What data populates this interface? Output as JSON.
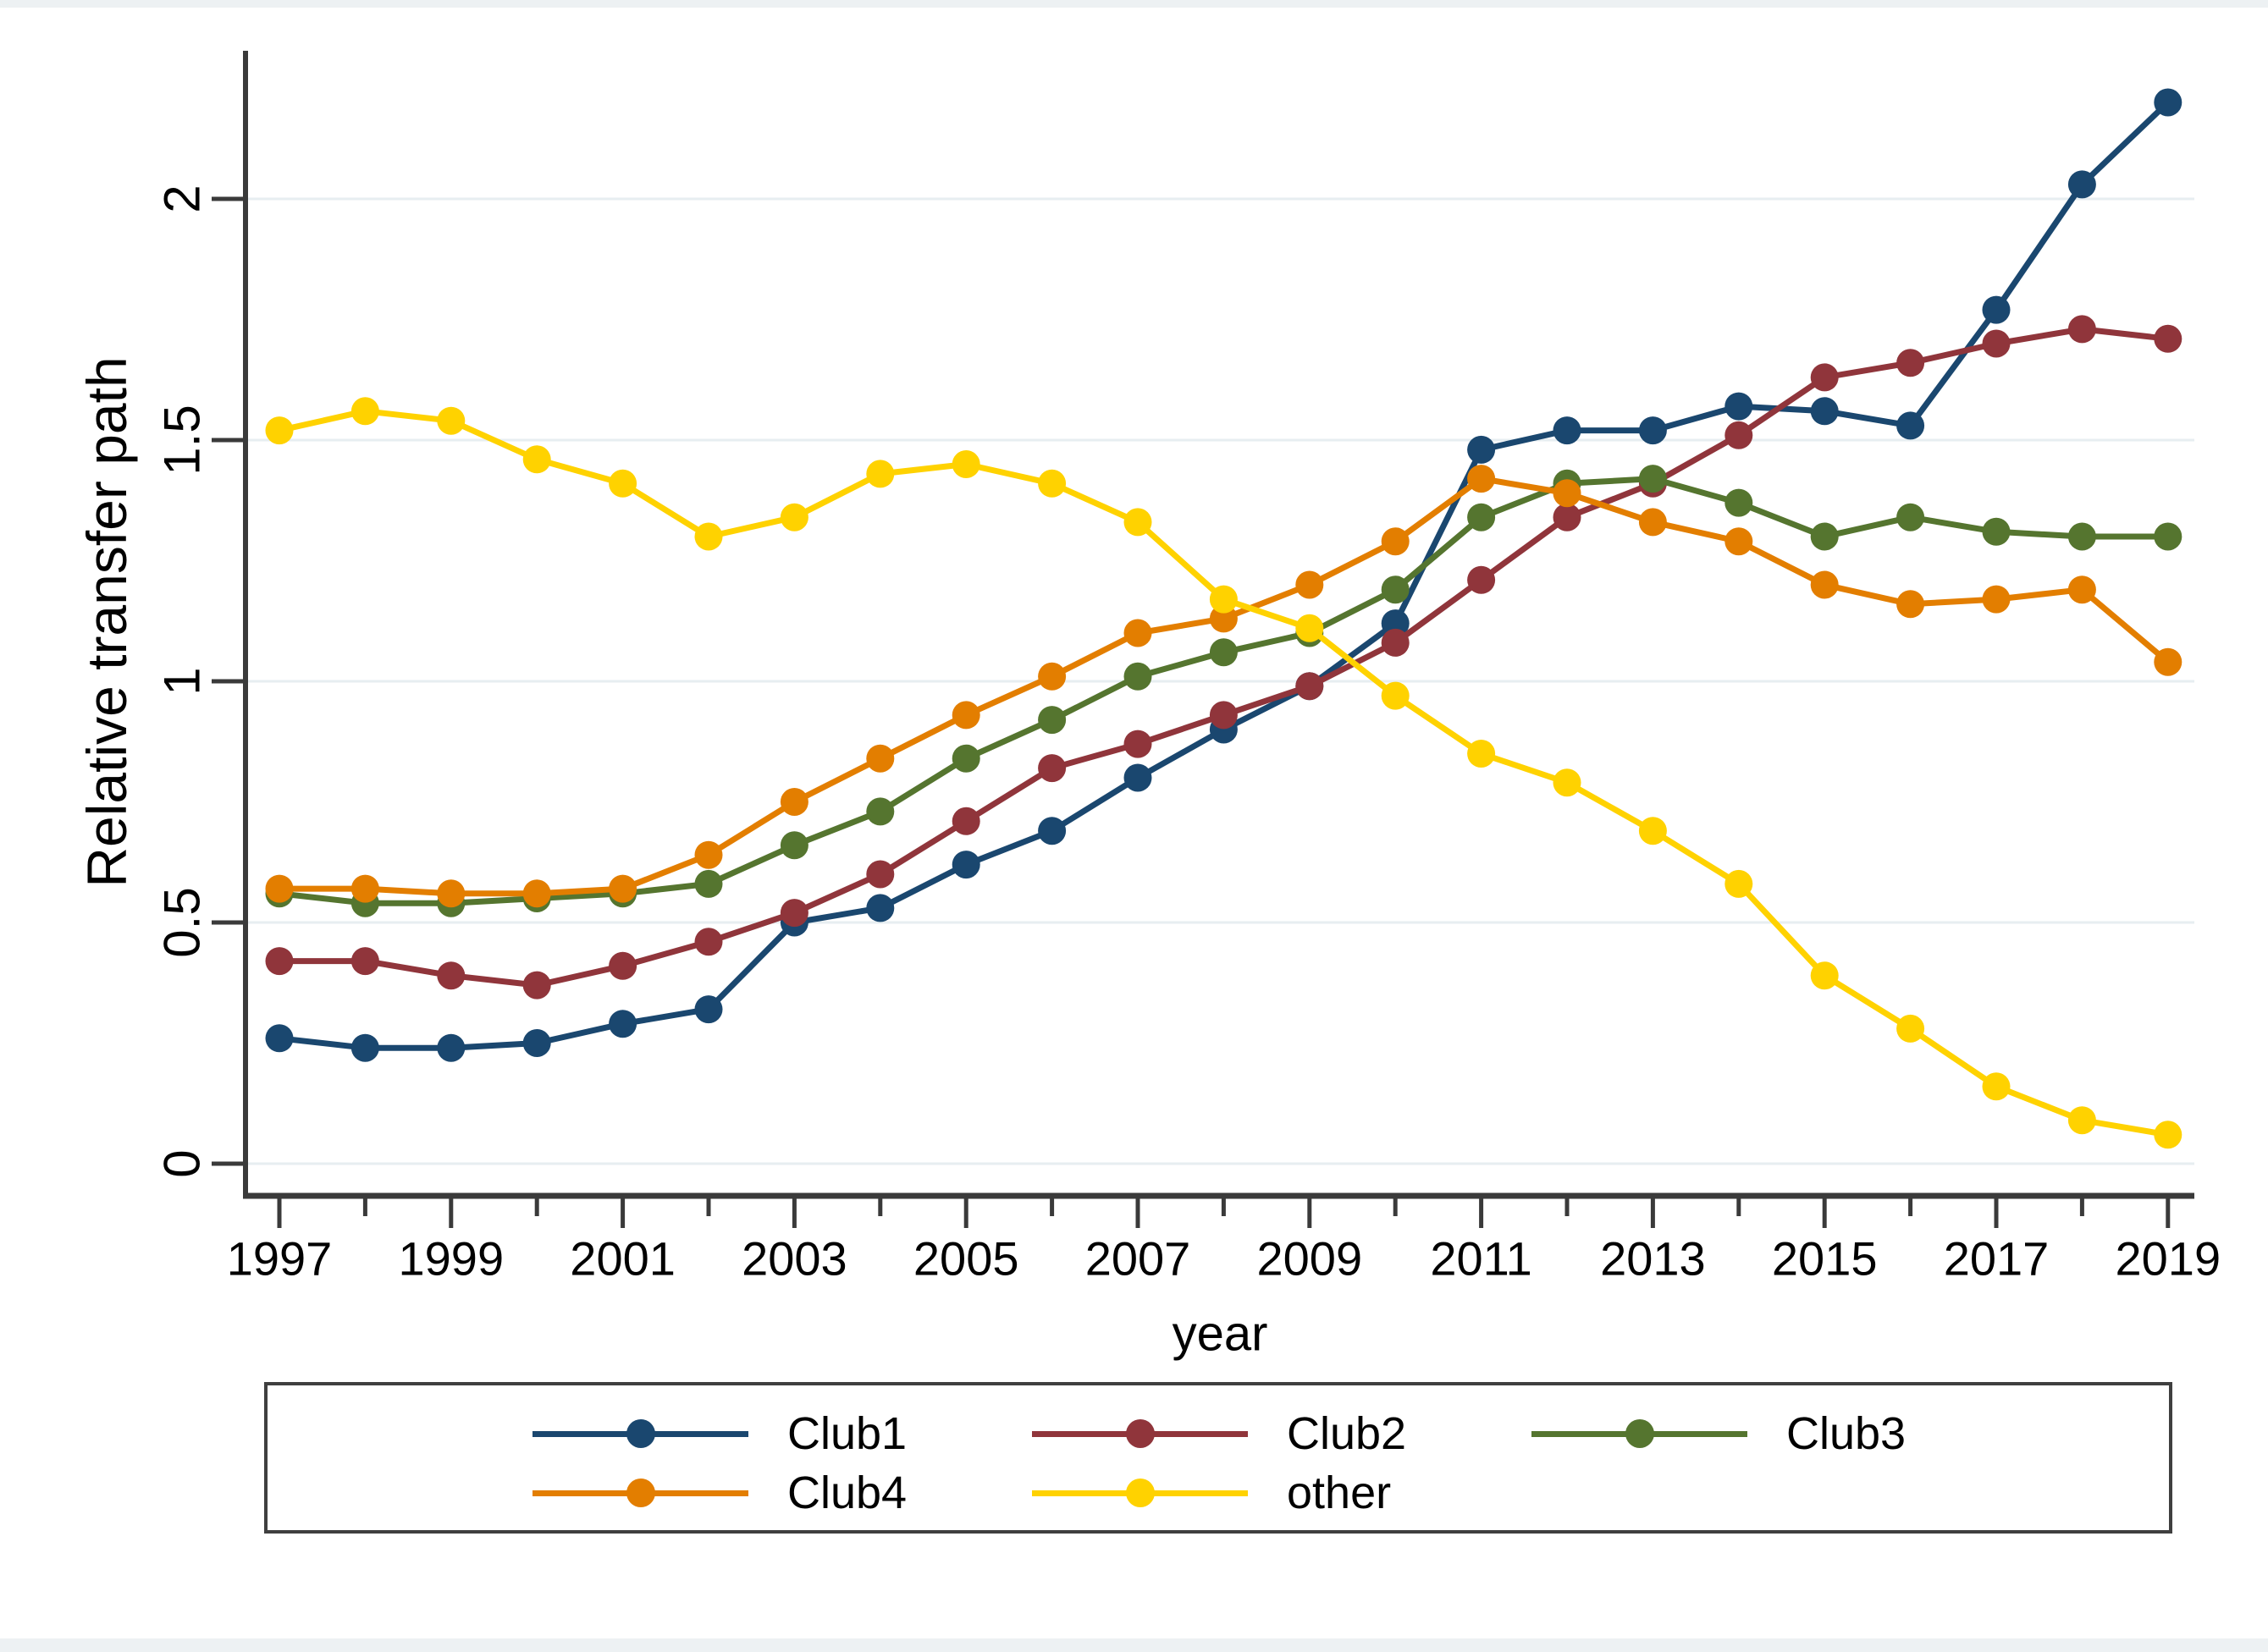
{
  "figure": {
    "background": "#ffffff",
    "text_color": "#000000",
    "axis_color": "#3a3a3a",
    "gridline_color": "#e7eef1"
  },
  "chart_data": {
    "type": "line",
    "title": "",
    "ylabel": "Relative transfer path",
    "xlabel": "year",
    "x": [
      1997,
      1998,
      1999,
      2000,
      2001,
      2002,
      2003,
      2004,
      2005,
      2006,
      2007,
      2008,
      2009,
      2010,
      2011,
      2012,
      2013,
      2014,
      2015,
      2016,
      2017,
      2018,
      2019
    ],
    "xtick_labels": [
      "1997",
      "1999",
      "2001",
      "2003",
      "2005",
      "2007",
      "2009",
      "2011",
      "2013",
      "2015",
      "2017",
      "2019"
    ],
    "ytick_values": [
      0,
      0.5,
      1,
      1.5,
      2
    ],
    "ytick_labels": [
      "0",
      "0.5",
      "1",
      "1.5",
      "2"
    ],
    "ylim": [
      -0.07,
      2.27
    ],
    "xlim": [
      1996.6,
      2019.3
    ],
    "grid": "horizontal, very light",
    "legend_position": "bottom, boxed, 2 rows",
    "marker": "filled circle",
    "series": [
      {
        "name": "Club1",
        "color": "#1a476f",
        "values": [
          0.26,
          0.24,
          0.24,
          0.25,
          0.29,
          0.32,
          0.5,
          0.53,
          0.62,
          0.69,
          0.8,
          0.9,
          0.99,
          1.12,
          1.48,
          1.52,
          1.52,
          1.57,
          1.56,
          1.53,
          1.77,
          2.03,
          2.2
        ]
      },
      {
        "name": "Club2",
        "color": "#90353b",
        "values": [
          0.42,
          0.42,
          0.39,
          0.37,
          0.41,
          0.46,
          0.52,
          0.6,
          0.71,
          0.82,
          0.87,
          0.93,
          0.99,
          1.08,
          1.21,
          1.34,
          1.41,
          1.51,
          1.63,
          1.66,
          1.7,
          1.73,
          1.71
        ]
      },
      {
        "name": "Club3",
        "color": "#55752f",
        "values": [
          0.56,
          0.54,
          0.54,
          0.55,
          0.56,
          0.58,
          0.66,
          0.73,
          0.84,
          0.92,
          1.01,
          1.06,
          1.1,
          1.19,
          1.34,
          1.41,
          1.42,
          1.37,
          1.3,
          1.34,
          1.31,
          1.3,
          1.3
        ]
      },
      {
        "name": "Club4",
        "color": "#e37e00",
        "values": [
          0.57,
          0.57,
          0.56,
          0.56,
          0.57,
          0.64,
          0.75,
          0.84,
          0.93,
          1.01,
          1.1,
          1.13,
          1.2,
          1.29,
          1.42,
          1.39,
          1.33,
          1.29,
          1.2,
          1.16,
          1.17,
          1.19,
          1.04
        ]
      },
      {
        "name": "other",
        "color": "#ffd200",
        "values": [
          1.52,
          1.56,
          1.54,
          1.46,
          1.41,
          1.3,
          1.34,
          1.43,
          1.45,
          1.41,
          1.33,
          1.17,
          1.11,
          0.97,
          0.85,
          0.79,
          0.69,
          0.58,
          0.39,
          0.28,
          0.16,
          0.09,
          0.06
        ]
      }
    ]
  }
}
